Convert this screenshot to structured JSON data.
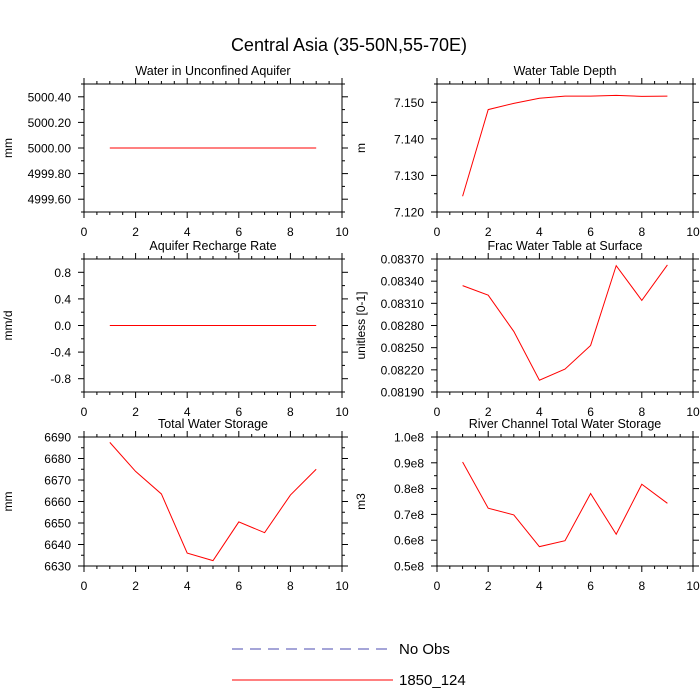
{
  "figure": {
    "title": "Central Asia (35-50N,55-70E)"
  },
  "legend": {
    "placement": "bottom-center",
    "entries": [
      {
        "label": "No Obs",
        "color": "#4b4bb0",
        "dashed": true
      },
      {
        "label": "1850_124",
        "color": "#ff0000",
        "dashed": false
      }
    ]
  },
  "chart_data": [
    {
      "type": "line",
      "title": "Water in Unconfined Aquifer",
      "ylabel": "mm",
      "xlim": [
        0,
        10
      ],
      "ylim": [
        4999.5,
        5000.5
      ],
      "xticks": [
        "0",
        "2",
        "4",
        "6",
        "8",
        "10"
      ],
      "yticks": [
        "4999.60",
        "4999.80",
        "5000.00",
        "5000.20",
        "5000.40"
      ],
      "series": [
        {
          "label": "1850_124",
          "color": "#ff0000",
          "x": [
            1,
            2,
            3,
            4,
            5,
            6,
            7,
            8,
            9
          ],
          "y": [
            5000,
            5000,
            5000,
            5000,
            5000,
            5000,
            5000,
            5000,
            5000
          ]
        }
      ]
    },
    {
      "type": "line",
      "title": "Water Table Depth",
      "ylabel": "m",
      "xlim": [
        0,
        10
      ],
      "ylim": [
        7.12,
        7.155
      ],
      "xticks": [
        "0",
        "2",
        "4",
        "6",
        "8",
        "10"
      ],
      "yticks": [
        "7.120",
        "7.130",
        "7.140",
        "7.150"
      ],
      "series": [
        {
          "label": "1850_124",
          "color": "#ff0000",
          "x": [
            1,
            2,
            3,
            4,
            5,
            6,
            7,
            8,
            9
          ],
          "y": [
            7.1243,
            7.148,
            7.1497,
            7.1511,
            7.1517,
            7.1517,
            7.1519,
            7.1516,
            7.1517
          ]
        }
      ]
    },
    {
      "type": "line",
      "title": "Aquifer Recharge Rate",
      "ylabel": "mm/d",
      "xlim": [
        0,
        10
      ],
      "ylim": [
        -1.0,
        1.0
      ],
      "xticks": [
        "0",
        "2",
        "4",
        "6",
        "8",
        "10"
      ],
      "yticks": [
        "-0.8",
        "-0.4",
        "0.0",
        "0.4",
        "0.8"
      ],
      "series": [
        {
          "label": "1850_124",
          "color": "#ff0000",
          "x": [
            1,
            2,
            3,
            4,
            5,
            6,
            7,
            8,
            9
          ],
          "y": [
            0,
            0,
            0,
            0,
            0,
            0,
            0,
            0,
            0
          ]
        }
      ]
    },
    {
      "type": "line",
      "title": "Frac Water Table at Surface",
      "ylabel": "unitless [0-1]",
      "xlim": [
        0,
        10
      ],
      "ylim": [
        0.0819,
        0.0837
      ],
      "xticks": [
        "0",
        "2",
        "4",
        "6",
        "8",
        "10"
      ],
      "yticks": [
        "0.08190",
        "0.08220",
        "0.08250",
        "0.08280",
        "0.08310",
        "0.08340",
        "0.08370"
      ],
      "series": [
        {
          "label": "1850_124",
          "color": "#ff0000",
          "x": [
            1,
            2,
            3,
            4,
            5,
            6,
            7,
            8,
            9
          ],
          "y": [
            0.08334,
            0.08321,
            0.08272,
            0.08206,
            0.08221,
            0.08253,
            0.08361,
            0.08314,
            0.08362
          ]
        }
      ]
    },
    {
      "type": "line",
      "title": "Total Water Storage",
      "ylabel": "mm",
      "xlim": [
        0,
        10
      ],
      "ylim": [
        6630,
        6690
      ],
      "xticks": [
        "0",
        "2",
        "4",
        "6",
        "8",
        "10"
      ],
      "yticks": [
        "6630",
        "6640",
        "6650",
        "6660",
        "6670",
        "6680",
        "6690"
      ],
      "series": [
        {
          "label": "1850_124",
          "color": "#ff0000",
          "x": [
            1,
            2,
            3,
            4,
            5,
            6,
            7,
            8,
            9
          ],
          "y": [
            6687.5,
            6674,
            6663.5,
            6636,
            6632.5,
            6650.5,
            6645.5,
            6663,
            6675
          ]
        }
      ]
    },
    {
      "type": "line",
      "title": "River Channel Total Water Storage",
      "ylabel": "m3",
      "xlim": [
        0,
        10
      ],
      "ylim": [
        50000000,
        100000000
      ],
      "xticks": [
        "0",
        "2",
        "4",
        "6",
        "8",
        "10"
      ],
      "yticks": [
        "0.5e8",
        "0.6e8",
        "0.7e8",
        "0.8e8",
        "0.9e8",
        "1.0e8"
      ],
      "series": [
        {
          "label": "1850_124",
          "color": "#ff0000",
          "x": [
            1,
            2,
            3,
            4,
            5,
            6,
            7,
            8,
            9
          ],
          "y": [
            90300000,
            72400000,
            69800000,
            57500000,
            59800000,
            78100000,
            62300000,
            81700000,
            74300000
          ]
        }
      ]
    }
  ]
}
